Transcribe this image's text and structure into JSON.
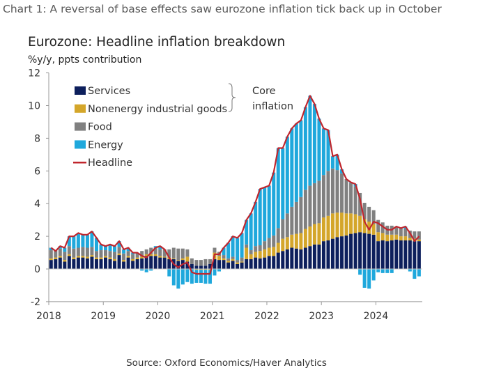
{
  "header": "Chart 1: A reversal of base effects saw eurozone inflation tick back up in October",
  "source": "Source: Oxford Economics/Haver Analytics",
  "chart_data": {
    "type": "bar",
    "stacked": true,
    "title": "Eurozone: Headline inflation breakdown",
    "ylabel": "%y/y, ppts contribution",
    "xlabel": "",
    "ylim": [
      -2,
      12
    ],
    "yticks": [
      "-2",
      "0",
      "2",
      "4",
      "6",
      "8",
      "10",
      "12"
    ],
    "xticks": [
      "2018",
      "2019",
      "2020",
      "2021",
      "2022",
      "2023",
      "2024"
    ],
    "x_start": "2018-01",
    "x_end": "2024-10",
    "frequency": "monthly",
    "legend_position": "top-left",
    "annotation": {
      "text_line1": "Core",
      "text_line2": "inflation"
    },
    "series": [
      {
        "name": "Services",
        "color": "#0d1f5c",
        "values": [
          0.55,
          0.6,
          0.7,
          0.45,
          0.8,
          0.6,
          0.7,
          0.7,
          0.65,
          0.75,
          0.6,
          0.6,
          0.7,
          0.6,
          0.5,
          0.85,
          0.45,
          0.7,
          0.5,
          0.6,
          0.65,
          0.8,
          0.8,
          0.8,
          0.7,
          0.7,
          0.6,
          0.6,
          0.5,
          0.55,
          0.45,
          0.3,
          0.2,
          0.2,
          0.2,
          0.3,
          0.6,
          0.55,
          0.55,
          0.4,
          0.5,
          0.3,
          0.4,
          0.6,
          0.6,
          0.7,
          0.65,
          0.7,
          0.8,
          0.8,
          1.0,
          1.1,
          1.2,
          1.3,
          1.25,
          1.2,
          1.3,
          1.4,
          1.5,
          1.5,
          1.7,
          1.75,
          1.85,
          1.95,
          2.0,
          2.05,
          2.15,
          2.2,
          2.25,
          2.2,
          2.15,
          2.1,
          1.7,
          1.75,
          1.7,
          1.75,
          1.8,
          1.75,
          1.75,
          1.75,
          1.7,
          1.7
        ]
      },
      {
        "name": "Nonenergy industrial goods",
        "color": "#d4a62a",
        "values": [
          0.1,
          0.1,
          0.1,
          0.1,
          0.1,
          0.1,
          0.1,
          0.1,
          0.1,
          0.1,
          0.1,
          0.1,
          0.1,
          0.1,
          0.1,
          0.1,
          0.1,
          0.1,
          0.1,
          0.1,
          0.1,
          0.1,
          0.1,
          0.1,
          0.1,
          0.05,
          0.1,
          0.05,
          0.05,
          0.1,
          0.3,
          0.0,
          -0.05,
          -0.05,
          -0.05,
          -0.05,
          0.4,
          0.25,
          0.1,
          0.1,
          0.1,
          0.1,
          0.05,
          0.7,
          0.3,
          0.35,
          0.45,
          0.5,
          0.5,
          0.55,
          0.6,
          0.75,
          0.75,
          0.8,
          0.9,
          1.0,
          1.15,
          1.2,
          1.25,
          1.3,
          1.45,
          1.5,
          1.55,
          1.5,
          1.45,
          1.35,
          1.25,
          1.15,
          1.0,
          0.85,
          0.75,
          0.65,
          0.55,
          0.45,
          0.4,
          0.35,
          0.3,
          0.25,
          0.25,
          0.15,
          0.15,
          0.1
        ]
      },
      {
        "name": "Food",
        "color": "#808080",
        "values": [
          0.5,
          0.45,
          0.45,
          0.5,
          0.5,
          0.55,
          0.5,
          0.55,
          0.55,
          0.5,
          0.4,
          0.45,
          0.35,
          0.4,
          0.45,
          0.4,
          0.4,
          0.3,
          0.3,
          0.3,
          0.35,
          0.3,
          0.4,
          0.4,
          0.4,
          0.45,
          0.5,
          0.65,
          0.7,
          0.6,
          0.45,
          0.35,
          0.35,
          0.35,
          0.4,
          0.3,
          0.3,
          0.25,
          0.2,
          0.15,
          0.15,
          0.15,
          0.25,
          0.2,
          0.25,
          0.35,
          0.35,
          0.5,
          0.6,
          0.7,
          0.9,
          1.2,
          1.45,
          1.7,
          1.95,
          2.2,
          2.4,
          2.5,
          2.5,
          2.6,
          2.6,
          2.75,
          2.75,
          2.6,
          2.4,
          2.1,
          1.85,
          1.7,
          1.4,
          1.0,
          0.9,
          0.85,
          0.75,
          0.65,
          0.55,
          0.55,
          0.5,
          0.5,
          0.45,
          0.45,
          0.45,
          0.5
        ]
      },
      {
        "name": "Energy",
        "color": "#1fa8dc",
        "values": [
          0.15,
          0.0,
          0.15,
          0.25,
          0.6,
          0.75,
          0.9,
          0.75,
          0.8,
          0.95,
          0.8,
          0.35,
          0.25,
          0.4,
          0.35,
          0.35,
          0.25,
          0.2,
          0.1,
          0.0,
          -0.1,
          -0.2,
          -0.1,
          0.1,
          0.2,
          0.0,
          -0.45,
          -1.0,
          -1.2,
          -0.95,
          -0.8,
          -0.9,
          -0.8,
          -0.8,
          -0.85,
          -0.85,
          -0.4,
          -0.15,
          0.45,
          0.95,
          1.25,
          1.35,
          1.5,
          1.5,
          2.25,
          2.7,
          3.45,
          3.3,
          3.2,
          3.85,
          4.9,
          4.35,
          4.7,
          4.8,
          4.8,
          4.7,
          5.05,
          5.5,
          4.85,
          3.8,
          2.85,
          2.5,
          0.75,
          0.95,
          0.25,
          0.0,
          0.05,
          0.15,
          -0.35,
          -1.15,
          -1.2,
          -0.7,
          -0.2,
          -0.25,
          -0.25,
          -0.25,
          0.0,
          0.0,
          0.15,
          -0.15,
          -0.6,
          -0.45
        ]
      }
    ],
    "line": {
      "name": "Headline",
      "color": "#c0262d",
      "values": [
        1.3,
        1.1,
        1.4,
        1.3,
        2.0,
        2.0,
        2.2,
        2.1,
        2.1,
        2.3,
        1.9,
        1.5,
        1.4,
        1.5,
        1.4,
        1.7,
        1.2,
        1.3,
        1.0,
        1.0,
        0.8,
        0.7,
        1.0,
        1.3,
        1.4,
        1.2,
        0.7,
        0.3,
        0.1,
        0.3,
        0.4,
        -0.2,
        -0.3,
        -0.3,
        -0.3,
        -0.3,
        0.9,
        0.9,
        1.3,
        1.6,
        2.0,
        1.9,
        2.2,
        3.0,
        3.4,
        4.1,
        4.9,
        5.0,
        5.1,
        5.9,
        7.4,
        7.4,
        8.1,
        8.6,
        8.9,
        9.1,
        9.9,
        10.6,
        10.1,
        9.2,
        8.6,
        8.5,
        6.9,
        7.0,
        6.1,
        5.5,
        5.3,
        5.2,
        4.3,
        2.9,
        2.4,
        2.9,
        2.8,
        2.6,
        2.4,
        2.4,
        2.6,
        2.5,
        2.6,
        2.2,
        1.7,
        2.0
      ]
    }
  }
}
